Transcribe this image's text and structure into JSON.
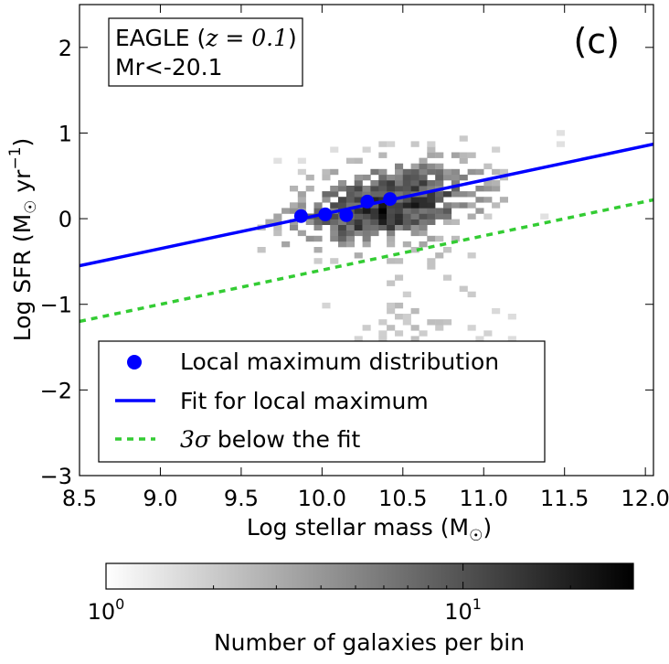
{
  "chart_data": {
    "type": "scatter",
    "panel_label": "(c)",
    "annotation": {
      "line1_prefix": "EAGLE (",
      "line1_math": "z = 0.1",
      "line1_suffix": ")",
      "line2": "Mr<-20.1"
    },
    "xlabel": {
      "text": "Log stellar mass (M",
      "sub": "☉",
      "close": ")"
    },
    "ylabel": {
      "text": "Log SFR (M",
      "sub": "☉",
      "mid": " yr",
      "sup": "−1",
      "close": ")"
    },
    "xlim": [
      8.5,
      12.05
    ],
    "ylim": [
      -3,
      2.5
    ],
    "xticks": [
      8.5,
      9.0,
      9.5,
      10.0,
      10.5,
      11.0,
      11.5,
      12.0
    ],
    "xtick_labels": [
      "8.5",
      "9.0",
      "9.5",
      "10.0",
      "10.5",
      "11.0",
      "11.5",
      "12.0"
    ],
    "yticks": [
      -3,
      -2,
      -1,
      0,
      1,
      2
    ],
    "ytick_labels": [
      "−3",
      "−2",
      "−1",
      "0",
      "1",
      "2"
    ],
    "series": [
      {
        "name": "Local maximum distribution",
        "kind": "scatter",
        "color": "#0000ff",
        "x": [
          9.87,
          10.02,
          10.15,
          10.28,
          10.42
        ],
        "y": [
          0.03,
          0.05,
          0.04,
          0.2,
          0.23
        ]
      },
      {
        "name": "Fit for local maximum",
        "kind": "line",
        "color": "#0000ff",
        "x": [
          8.5,
          12.05
        ],
        "y": [
          -0.55,
          0.87
        ]
      },
      {
        "name": "3σ below the fit",
        "name_math": "3σ",
        "name_rest": " below the fit",
        "kind": "dashed-line",
        "color": "#33cc33",
        "x": [
          8.5,
          12.05
        ],
        "y": [
          -1.2,
          0.22
        ]
      }
    ],
    "histogram": {
      "description_bins": "2D histogram of galaxies, grey scale",
      "xmin": 9.6,
      "xmax": 11.8,
      "ymin": -1.5,
      "ymax": 1.0,
      "center_x": 10.35,
      "center_y": 0.15,
      "slope": 0.38
    },
    "colorbar": {
      "label": "Number of galaxies per bin",
      "scale": "log",
      "min": 1,
      "max": 30,
      "tick_values": [
        1,
        10
      ],
      "tick_labels": [
        {
          "base": "10",
          "exp": "0"
        },
        {
          "base": "10",
          "exp": "1"
        }
      ]
    },
    "legend_position": "lower-left",
    "grid": false
  }
}
